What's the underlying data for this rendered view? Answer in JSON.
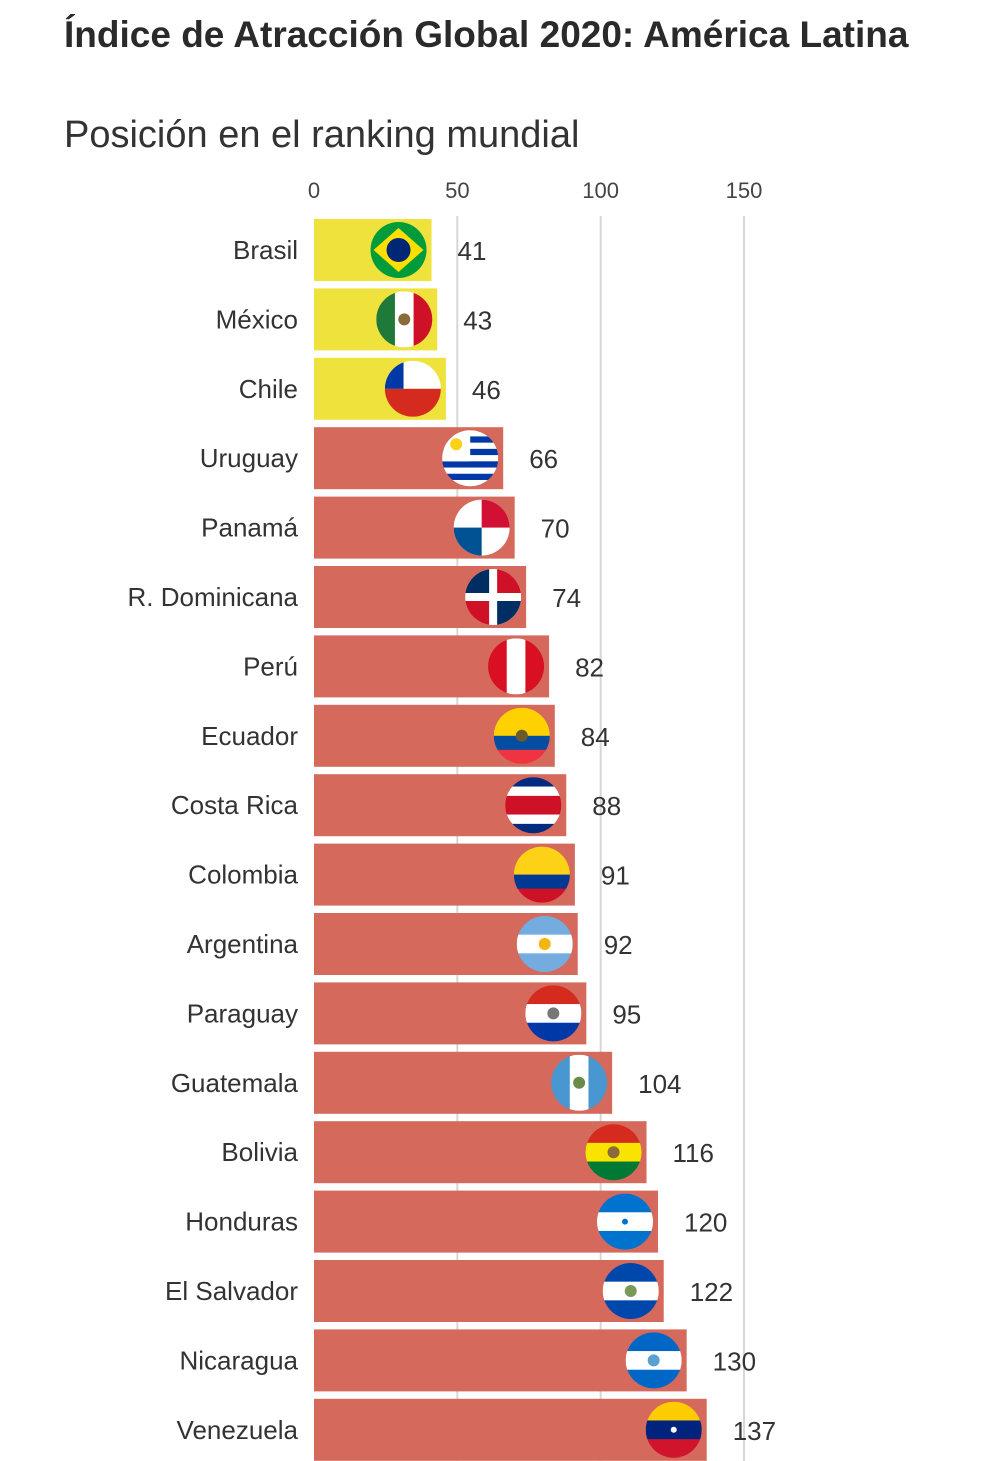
{
  "chart_data": {
    "type": "bar",
    "orientation": "horizontal",
    "title": "Índice de Atracción Global 2020: América Latina",
    "subtitle": "Posición en el ranking mundial",
    "xlim": [
      0,
      150
    ],
    "xticks": [
      0,
      50,
      100,
      150
    ],
    "grid": true,
    "categories": [
      "Brasil",
      "México",
      "Chile",
      "Uruguay",
      "Panamá",
      "R. Dominicana",
      "Perú",
      "Ecuador",
      "Costa Rica",
      "Colombia",
      "Argentina",
      "Paraguay",
      "Guatemala",
      "Bolivia",
      "Honduras",
      "El Salvador",
      "Nicaragua",
      "Venezuela"
    ],
    "values": [
      41,
      43,
      46,
      66,
      70,
      74,
      82,
      84,
      88,
      91,
      92,
      95,
      104,
      116,
      120,
      122,
      130,
      137
    ],
    "flags": [
      "brazil-flag-icon",
      "mexico-flag-icon",
      "chile-flag-icon",
      "uruguay-flag-icon",
      "panama-flag-icon",
      "dominican-republic-flag-icon",
      "peru-flag-icon",
      "ecuador-flag-icon",
      "costa-rica-flag-icon",
      "colombia-flag-icon",
      "argentina-flag-icon",
      "paraguay-flag-icon",
      "guatemala-flag-icon",
      "bolivia-flag-icon",
      "honduras-flag-icon",
      "el-salvador-flag-icon",
      "nicaragua-flag-icon",
      "venezuela-flag-icon"
    ],
    "highlight_count": 3,
    "colors": {
      "highlight": "#efe23c",
      "default": "#d4695c",
      "grid": "#d6d6d6"
    }
  }
}
